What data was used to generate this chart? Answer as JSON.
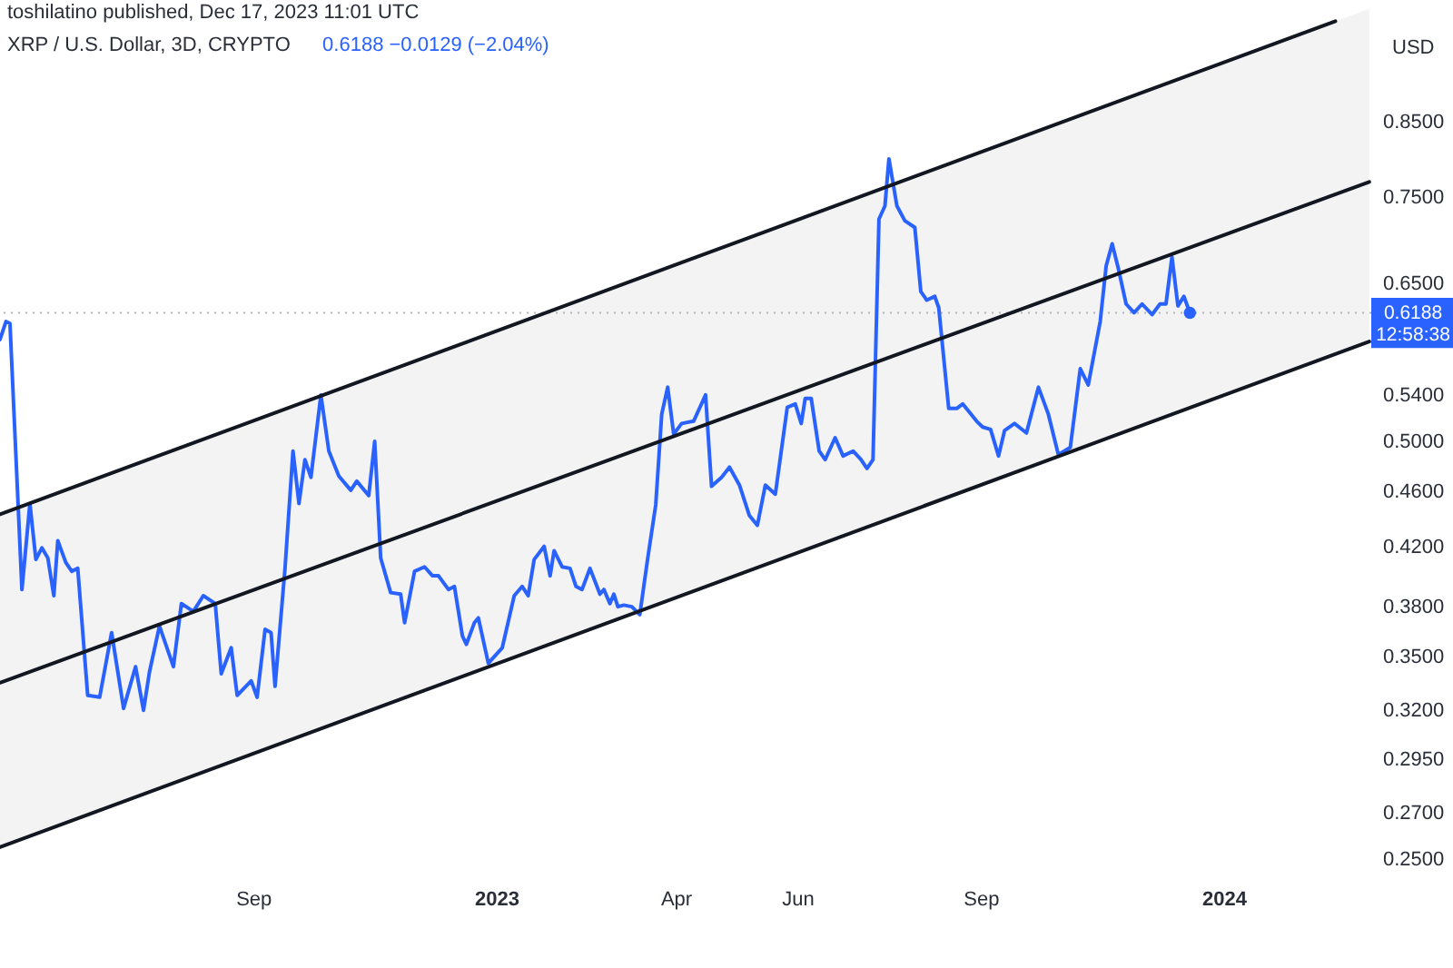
{
  "chart_data": {
    "type": "line",
    "title": "XRP / U.S. Dollar, 3D, CRYPTO",
    "subtitle": "0.6188 −0.0129 (−2.04%)",
    "ylabel": "USD",
    "annotations": [
      "toshilatino published, Dec 17, 2023 11:01 UTC"
    ],
    "log": true,
    "xlim": [
      "2022-04-27",
      "2024-03-15"
    ],
    "xticks": [
      {
        "value": "2022-09-01",
        "label": "Sep"
      },
      {
        "value": "2023-01-01",
        "label": "2023"
      },
      {
        "value": "2023-04-01",
        "label": "Apr"
      },
      {
        "value": "2023-06-01",
        "label": "Jun"
      },
      {
        "value": "2023-09-01",
        "label": "Sep"
      },
      {
        "value": "2024-01-01",
        "label": "2024"
      }
    ],
    "ylim": [
      0.25,
      1.04
    ],
    "yticks": [
      {
        "value": 0.25,
        "label": "0.2500"
      },
      {
        "value": 0.27,
        "label": "0.2700"
      },
      {
        "value": 0.295,
        "label": "0.2950"
      },
      {
        "value": 0.32,
        "label": "0.3200"
      },
      {
        "value": 0.35,
        "label": "0.3500"
      },
      {
        "value": 0.38,
        "label": "0.3800"
      },
      {
        "value": 0.42,
        "label": "0.4200"
      },
      {
        "value": 0.46,
        "label": "0.4600"
      },
      {
        "value": 0.5,
        "label": "0.5000"
      },
      {
        "value": 0.54,
        "label": "0.5400"
      },
      {
        "value": 0.65,
        "label": "0.6500"
      },
      {
        "value": 0.75,
        "label": "0.7500"
      },
      {
        "value": 0.85,
        "label": "0.8500"
      }
    ],
    "ref_lines": [
      {
        "axis": "y",
        "value": 0.6188,
        "label": "0.6188\n12:58:38",
        "color": "#b2b5be",
        "line_style": "dotted"
      }
    ],
    "series": [
      {
        "color": "#2962ff",
        "x": [
          "2022-04-27",
          "2022-04-30",
          "2022-05-02",
          "2022-05-08",
          "2022-05-12",
          "2022-05-15",
          "2022-05-18",
          "2022-05-21",
          "2022-05-24",
          "2022-05-26",
          "2022-05-30",
          "2022-06-02",
          "2022-06-05",
          "2022-06-10",
          "2022-06-16",
          "2022-06-22",
          "2022-06-28",
          "2022-07-04",
          "2022-07-08",
          "2022-07-11",
          "2022-07-16",
          "2022-07-23",
          "2022-07-27",
          "2022-08-02",
          "2022-08-07",
          "2022-08-13",
          "2022-08-16",
          "2022-08-21",
          "2022-08-24",
          "2022-08-31",
          "2022-09-03",
          "2022-09-07",
          "2022-09-10",
          "2022-09-12",
          "2022-09-17",
          "2022-09-21",
          "2022-09-24",
          "2022-09-27",
          "2022-09-30",
          "2022-10-05",
          "2022-10-09",
          "2022-10-14",
          "2022-10-20",
          "2022-10-23",
          "2022-10-29",
          "2022-11-01",
          "2022-11-04",
          "2022-11-09",
          "2022-11-14",
          "2022-11-16",
          "2022-11-21",
          "2022-11-26",
          "2022-11-30",
          "2022-12-03",
          "2022-12-08",
          "2022-12-11",
          "2022-12-15",
          "2022-12-17",
          "2022-12-21",
          "2022-12-23",
          "2022-12-28",
          "2023-01-04",
          "2023-01-10",
          "2023-01-14",
          "2023-01-17",
          "2023-01-20",
          "2023-01-25",
          "2023-01-28",
          "2023-01-30",
          "2023-02-03",
          "2023-02-07",
          "2023-02-10",
          "2023-02-13",
          "2023-02-17",
          "2023-02-22",
          "2023-02-24",
          "2023-02-27",
          "2023-03-01",
          "2023-03-03",
          "2023-03-06",
          "2023-03-10",
          "2023-03-14",
          "2023-03-18",
          "2023-03-22",
          "2023-03-25",
          "2023-03-28",
          "2023-03-31",
          "2023-04-04",
          "2023-04-10",
          "2023-04-16",
          "2023-04-19",
          "2023-04-24",
          "2023-04-28",
          "2023-05-03",
          "2023-05-08",
          "2023-05-12",
          "2023-05-16",
          "2023-05-21",
          "2023-05-27",
          "2023-05-31",
          "2023-06-03",
          "2023-06-05",
          "2023-06-08",
          "2023-06-12",
          "2023-06-15",
          "2023-06-20",
          "2023-06-24",
          "2023-06-29",
          "2023-07-03",
          "2023-07-06",
          "2023-07-09",
          "2023-07-12",
          "2023-07-15",
          "2023-07-17",
          "2023-07-21",
          "2023-07-25",
          "2023-07-30",
          "2023-08-02",
          "2023-08-05",
          "2023-08-09",
          "2023-08-11",
          "2023-08-16",
          "2023-08-20",
          "2023-08-23",
          "2023-08-30",
          "2023-09-02",
          "2023-09-06",
          "2023-09-10",
          "2023-09-13",
          "2023-09-18",
          "2023-09-24",
          "2023-09-30",
          "2023-10-05",
          "2023-10-10",
          "2023-10-16",
          "2023-10-21",
          "2023-10-25",
          "2023-10-31",
          "2023-11-03",
          "2023-11-06",
          "2023-11-09",
          "2023-11-13",
          "2023-11-17",
          "2023-11-21",
          "2023-11-26",
          "2023-11-30",
          "2023-12-03",
          "2023-12-06",
          "2023-12-09",
          "2023-12-12",
          "2023-12-15"
        ],
        "values": [
          0.592,
          0.61,
          0.608,
          0.391,
          0.451,
          0.411,
          0.419,
          0.412,
          0.387,
          0.424,
          0.409,
          0.403,
          0.405,
          0.328,
          0.327,
          0.364,
          0.321,
          0.344,
          0.32,
          0.341,
          0.368,
          0.344,
          0.382,
          0.377,
          0.387,
          0.382,
          0.34,
          0.355,
          0.328,
          0.336,
          0.327,
          0.366,
          0.364,
          0.333,
          0.405,
          0.492,
          0.451,
          0.485,
          0.471,
          0.54,
          0.492,
          0.472,
          0.461,
          0.468,
          0.457,
          0.5,
          0.412,
          0.389,
          0.388,
          0.37,
          0.403,
          0.406,
          0.4,
          0.4,
          0.391,
          0.393,
          0.362,
          0.357,
          0.37,
          0.373,
          0.346,
          0.355,
          0.387,
          0.393,
          0.387,
          0.411,
          0.42,
          0.4,
          0.417,
          0.406,
          0.405,
          0.393,
          0.391,
          0.405,
          0.388,
          0.391,
          0.382,
          0.388,
          0.38,
          0.381,
          0.38,
          0.375,
          0.412,
          0.45,
          0.523,
          0.547,
          0.506,
          0.515,
          0.517,
          0.54,
          0.464,
          0.471,
          0.479,
          0.465,
          0.442,
          0.435,
          0.465,
          0.458,
          0.529,
          0.532,
          0.515,
          0.537,
          0.537,
          0.492,
          0.485,
          0.503,
          0.488,
          0.492,
          0.485,
          0.478,
          0.485,
          0.723,
          0.739,
          0.799,
          0.739,
          0.721,
          0.713,
          0.641,
          0.632,
          0.636,
          0.624,
          0.528,
          0.528,
          0.532,
          0.517,
          0.512,
          0.51,
          0.488,
          0.509,
          0.515,
          0.507,
          0.547,
          0.523,
          0.489,
          0.495,
          0.564,
          0.549,
          0.61,
          0.669,
          0.694,
          0.667,
          0.628,
          0.619,
          0.628,
          0.617,
          0.628,
          0.628,
          0.679,
          0.626,
          0.636,
          0.6188
        ]
      },
      {
        "color": "#131722",
        "x": [
          "2022-04-27",
          "2024-02-26"
        ],
        "values": [
          0.443,
          1.004
        ]
      },
      {
        "color": "#131722",
        "x": [
          "2022-04-27",
          "2024-03-14"
        ],
        "values": [
          0.335,
          0.769
        ],
        "lower": [
          0.255,
          0.59
        ],
        "upper": [
          0.443,
          1.025
        ]
      },
      {
        "color": "#131722",
        "x": [
          "2022-04-27",
          "2024-03-14"
        ],
        "values": [
          0.255,
          0.59
        ]
      },
      {
        "type": "scatter",
        "color": "#2962ff",
        "marker": "circle",
        "x": [
          "2023-12-15"
        ],
        "values": [
          0.6188
        ]
      }
    ]
  }
}
